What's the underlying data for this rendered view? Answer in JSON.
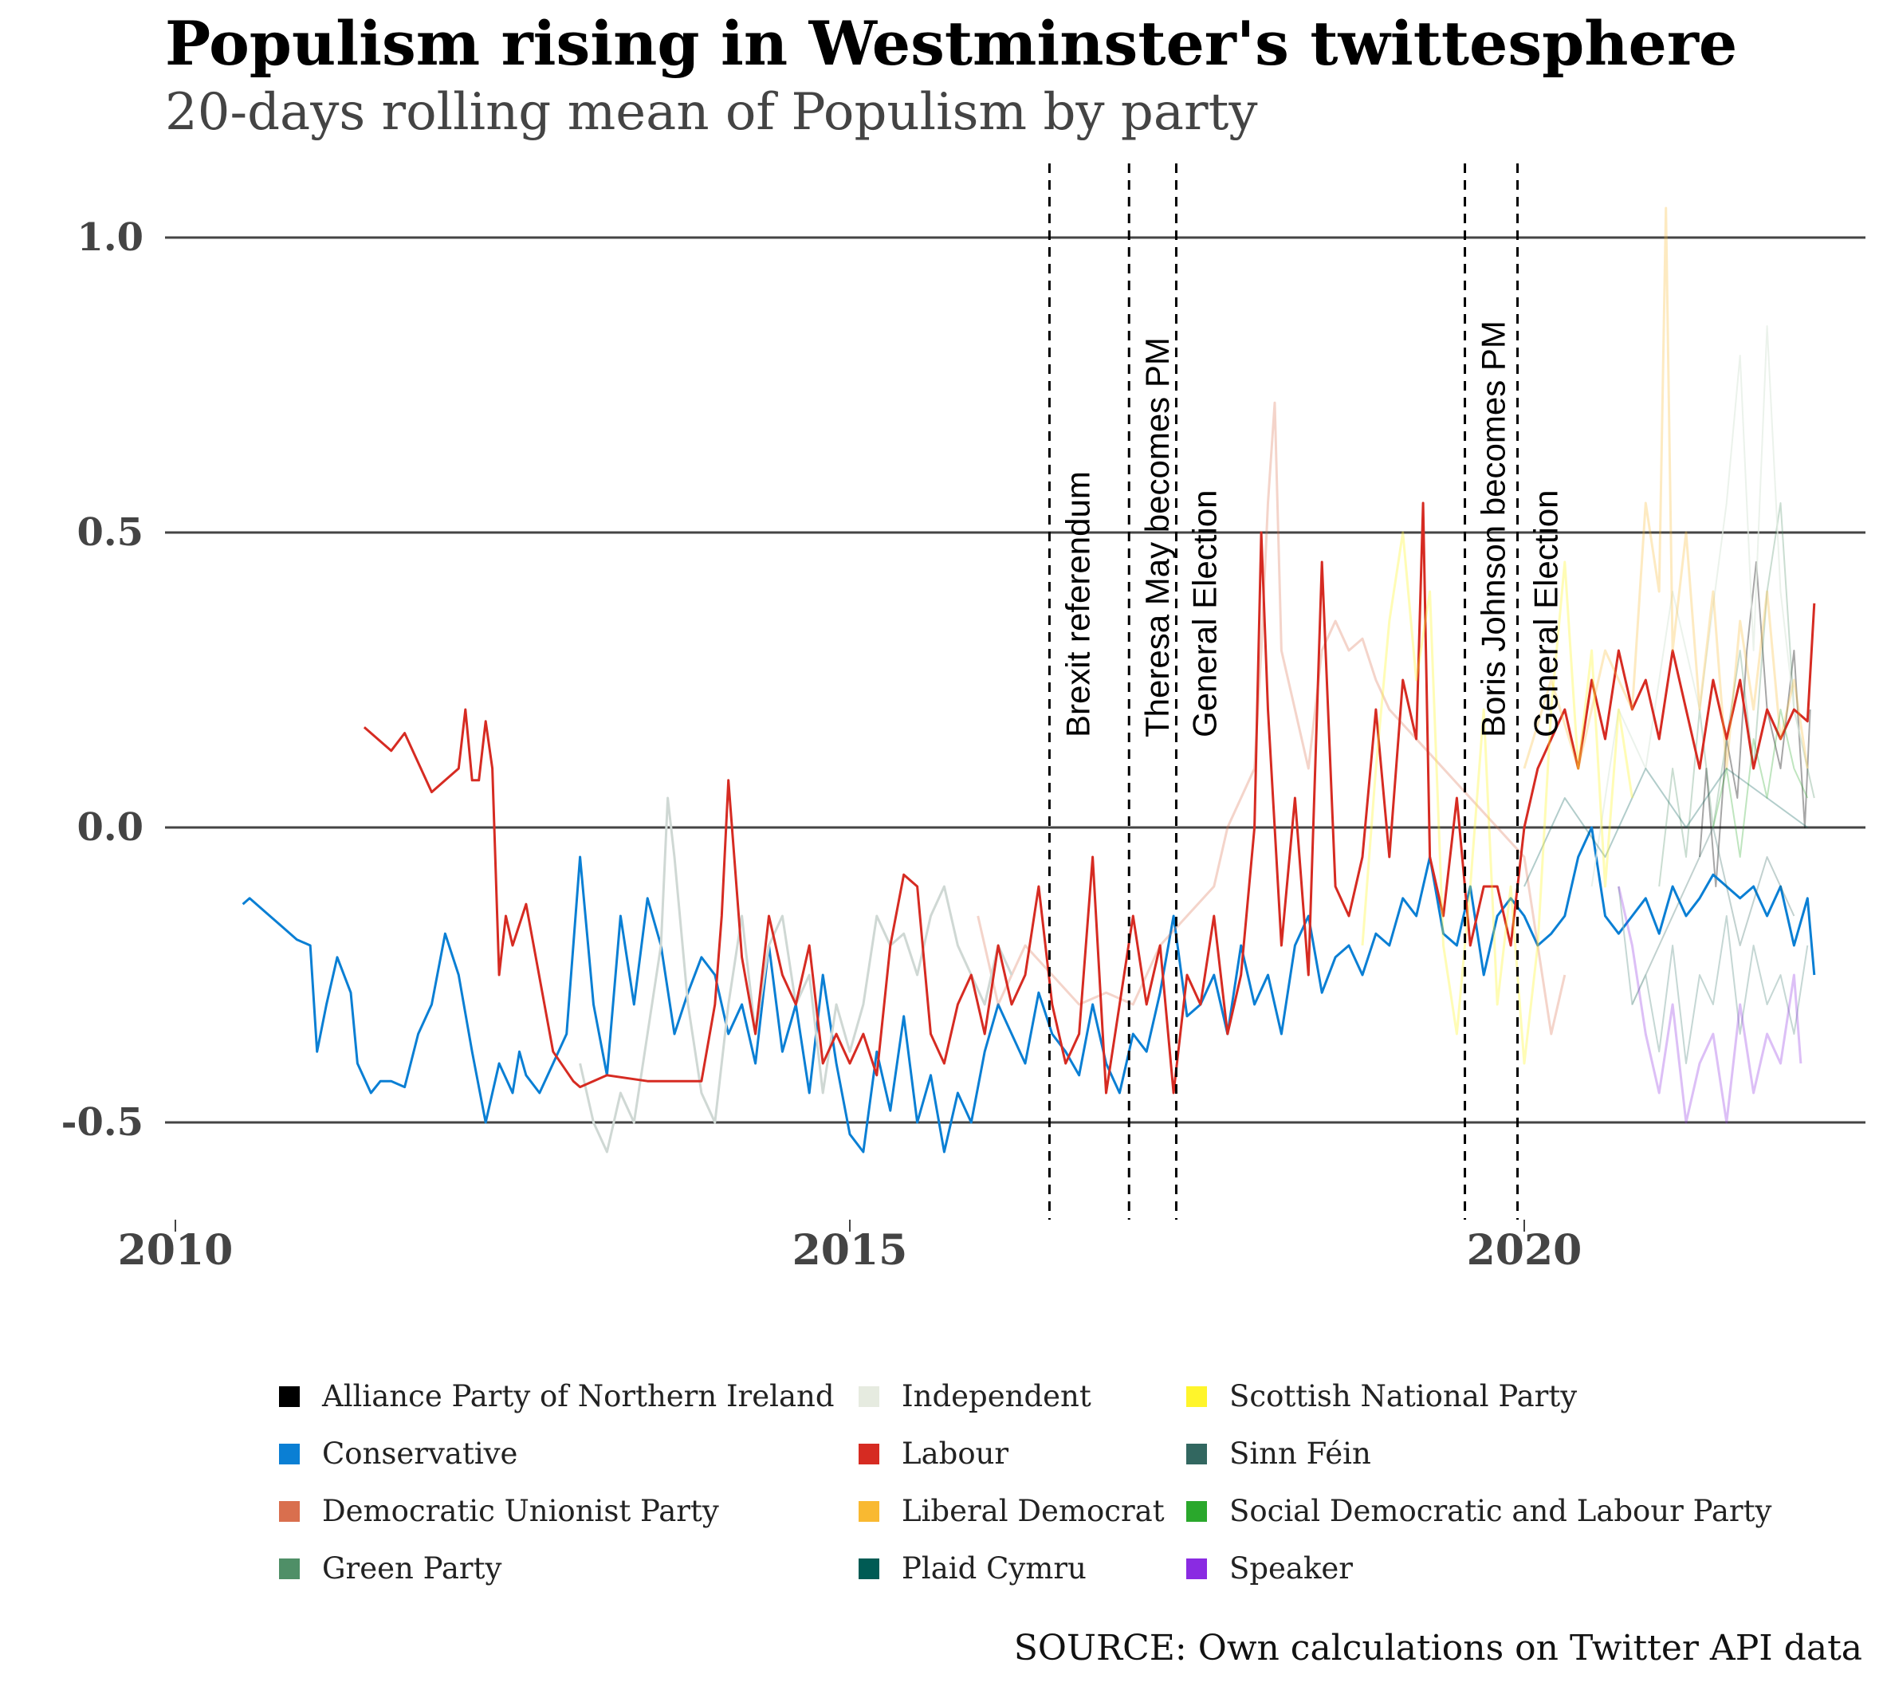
{
  "chart_data": {
    "type": "line",
    "title": "Populism rising in Westminster's twittesphere",
    "subtitle": "20-days rolling mean of Populism by party",
    "source": "SOURCE: Own calculations on Twitter API data",
    "xlabel": "",
    "ylabel": "",
    "xlim": [
      2010.0,
      2022.5
    ],
    "ylim": [
      -0.63,
      1.1
    ],
    "yticks": [
      "1.0",
      "0.5",
      "0.0",
      "-0.5"
    ],
    "ytick_values": [
      1.0,
      0.5,
      0.0,
      -0.5
    ],
    "xticks": [
      "2010",
      "2015",
      "2020"
    ],
    "xtick_values": [
      2010,
      2015,
      2020
    ],
    "grid": "horizontal",
    "legend_position": "bottom",
    "events": [
      {
        "label": "Brexit referendum",
        "x": 2016.48
      },
      {
        "label": "Theresa May becomes PM",
        "x": 2017.07
      },
      {
        "label": "General Election",
        "x": 2017.42
      },
      {
        "label": "Boris Johnson becomes PM",
        "x": 2019.56
      },
      {
        "label": "General Election",
        "x": 2019.95
      }
    ],
    "series": [
      {
        "name": "Alliance Party of Northern Ireland",
        "color": "#000000",
        "opacity": 0.35,
        "width": 2,
        "x": [
          2021.3,
          2021.35,
          2021.42,
          2021.5,
          2021.58,
          2021.65,
          2021.72,
          2021.8,
          2021.9,
          2022.0,
          2022.08,
          2022.12
        ],
        "y": [
          -0.05,
          0.1,
          -0.1,
          0.15,
          0.05,
          0.3,
          0.45,
          0.2,
          0.1,
          0.3,
          0.0,
          0.2
        ]
      },
      {
        "name": "Conservative",
        "color": "#0a7fd4",
        "opacity": 1.0,
        "width": 3,
        "x": [
          2010.5,
          2010.55,
          2010.8,
          2010.9,
          2011.0,
          2011.05,
          2011.12,
          2011.2,
          2011.3,
          2011.35,
          2011.45,
          2011.52,
          2011.6,
          2011.7,
          2011.8,
          2011.9,
          2012.0,
          2012.1,
          2012.2,
          2012.3,
          2012.4,
          2012.5,
          2012.55,
          2012.6,
          2012.7,
          2012.8,
          2012.9,
          2013.0,
          2013.1,
          2013.2,
          2013.3,
          2013.4,
          2013.5,
          2013.6,
          2013.7,
          2013.8,
          2013.9,
          2014.0,
          2014.1,
          2014.2,
          2014.3,
          2014.4,
          2014.5,
          2014.6,
          2014.7,
          2014.8,
          2014.9,
          2015.0,
          2015.1,
          2015.2,
          2015.3,
          2015.4,
          2015.5,
          2015.6,
          2015.7,
          2015.8,
          2015.9,
          2016.0,
          2016.1,
          2016.2,
          2016.3,
          2016.4,
          2016.5,
          2016.6,
          2016.7,
          2016.8,
          2016.9,
          2017.0,
          2017.1,
          2017.2,
          2017.3,
          2017.4,
          2017.5,
          2017.6,
          2017.7,
          2017.8,
          2017.9,
          2018.0,
          2018.1,
          2018.2,
          2018.3,
          2018.4,
          2018.5,
          2018.6,
          2018.7,
          2018.8,
          2018.9,
          2019.0,
          2019.1,
          2019.2,
          2019.3,
          2019.4,
          2019.5,
          2019.6,
          2019.7,
          2019.8,
          2019.9,
          2020.0,
          2020.1,
          2020.2,
          2020.3,
          2020.4,
          2020.5,
          2020.6,
          2020.7,
          2020.8,
          2020.9,
          2021.0,
          2021.1,
          2021.2,
          2021.3,
          2021.4,
          2021.5,
          2021.6,
          2021.7,
          2021.8,
          2021.9,
          2022.0,
          2022.1,
          2022.15
        ],
        "y": [
          -0.13,
          -0.12,
          -0.17,
          -0.19,
          -0.2,
          -0.38,
          -0.3,
          -0.22,
          -0.28,
          -0.4,
          -0.45,
          -0.43,
          -0.43,
          -0.44,
          -0.35,
          -0.3,
          -0.18,
          -0.25,
          -0.38,
          -0.5,
          -0.4,
          -0.45,
          -0.38,
          -0.42,
          -0.45,
          -0.4,
          -0.35,
          -0.05,
          -0.3,
          -0.42,
          -0.15,
          -0.3,
          -0.12,
          -0.2,
          -0.35,
          -0.28,
          -0.22,
          -0.25,
          -0.35,
          -0.3,
          -0.4,
          -0.2,
          -0.38,
          -0.3,
          -0.45,
          -0.25,
          -0.4,
          -0.52,
          -0.55,
          -0.38,
          -0.48,
          -0.32,
          -0.5,
          -0.42,
          -0.55,
          -0.45,
          -0.5,
          -0.38,
          -0.3,
          -0.35,
          -0.4,
          -0.28,
          -0.35,
          -0.38,
          -0.42,
          -0.3,
          -0.4,
          -0.45,
          -0.35,
          -0.38,
          -0.28,
          -0.15,
          -0.32,
          -0.3,
          -0.25,
          -0.35,
          -0.2,
          -0.3,
          -0.25,
          -0.35,
          -0.2,
          -0.15,
          -0.28,
          -0.22,
          -0.2,
          -0.25,
          -0.18,
          -0.2,
          -0.12,
          -0.15,
          -0.05,
          -0.18,
          -0.2,
          -0.1,
          -0.25,
          -0.15,
          -0.12,
          -0.15,
          -0.2,
          -0.18,
          -0.15,
          -0.05,
          0.0,
          -0.15,
          -0.18,
          -0.15,
          -0.12,
          -0.18,
          -0.1,
          -0.15,
          -0.12,
          -0.08,
          -0.1,
          -0.12,
          -0.1,
          -0.15,
          -0.1,
          -0.2,
          -0.12,
          -0.25
        ]
      },
      {
        "name": "Democratic Unionist Party",
        "color": "#d96f4e",
        "opacity": 0.3,
        "width": 3,
        "x": [
          2015.95,
          2016.1,
          2016.3,
          2016.5,
          2016.7,
          2016.9,
          2017.1,
          2017.3,
          2017.5,
          2017.7,
          2017.8,
          2017.9,
          2018.0,
          2018.05,
          2018.1,
          2018.15,
          2018.2,
          2018.3,
          2018.4,
          2018.5,
          2018.6,
          2018.7,
          2018.8,
          2018.9,
          2019.0,
          2019.2,
          2019.4,
          2019.6,
          2019.8,
          2020.0,
          2020.1,
          2020.2,
          2020.3
        ],
        "y": [
          -0.15,
          -0.3,
          -0.2,
          -0.25,
          -0.3,
          -0.28,
          -0.3,
          -0.2,
          -0.15,
          -0.1,
          0.0,
          0.05,
          0.1,
          0.3,
          0.55,
          0.72,
          0.3,
          0.2,
          0.1,
          0.3,
          0.35,
          0.3,
          0.32,
          0.25,
          0.2,
          0.15,
          0.1,
          0.05,
          0.0,
          -0.05,
          -0.2,
          -0.35,
          -0.25
        ]
      },
      {
        "name": "Green Party",
        "color": "#4f8f67",
        "opacity": 0.3,
        "width": 2,
        "x": [
          2021.0,
          2021.1,
          2021.2,
          2021.3,
          2021.4,
          2021.5,
          2021.6,
          2021.7,
          2021.8,
          2021.9,
          2022.0,
          2022.1,
          2022.15
        ],
        "y": [
          -0.1,
          0.1,
          -0.05,
          0.2,
          0.0,
          0.15,
          0.3,
          0.1,
          0.4,
          0.55,
          0.2,
          0.1,
          0.05
        ]
      },
      {
        "name": "Independent",
        "color": "#cfd8d4",
        "opacity": 1.0,
        "width": 3,
        "x": [
          2013.0,
          2013.1,
          2013.2,
          2013.3,
          2013.4,
          2013.5,
          2013.6,
          2013.65,
          2013.7,
          2013.8,
          2013.9,
          2014.0,
          2014.1,
          2014.2,
          2014.3,
          2014.4,
          2014.5,
          2014.6,
          2014.7,
          2014.8,
          2014.9,
          2015.0,
          2015.1,
          2015.2,
          2015.3,
          2015.4,
          2015.5,
          2015.6,
          2015.7,
          2015.8,
          2015.9,
          2016.0,
          2016.1,
          2016.2
        ],
        "y": [
          -0.4,
          -0.5,
          -0.55,
          -0.45,
          -0.5,
          -0.35,
          -0.2,
          0.05,
          -0.05,
          -0.3,
          -0.45,
          -0.5,
          -0.3,
          -0.15,
          -0.35,
          -0.2,
          -0.15,
          -0.3,
          -0.25,
          -0.45,
          -0.3,
          -0.38,
          -0.3,
          -0.15,
          -0.2,
          -0.18,
          -0.25,
          -0.15,
          -0.1,
          -0.2,
          -0.25,
          -0.3,
          -0.2,
          -0.25
        ]
      },
      {
        "name": "Independent",
        "color": "#e3ece3",
        "opacity": 0.7,
        "width": 2,
        "x": [
          2020.5,
          2020.7,
          2020.9,
          2021.1,
          2021.3,
          2021.5,
          2021.6,
          2021.7,
          2021.8,
          2021.9,
          2022.0,
          2022.1
        ],
        "y": [
          -0.1,
          0.2,
          0.1,
          0.4,
          0.2,
          0.55,
          0.8,
          0.3,
          0.85,
          0.4,
          0.2,
          0.1
        ]
      },
      {
        "name": "Labour",
        "color": "#d62b22",
        "opacity": 1.0,
        "width": 3,
        "x": [
          2011.4,
          2011.6,
          2011.7,
          2011.9,
          2012.0,
          2012.1,
          2012.15,
          2012.2,
          2012.25,
          2012.3,
          2012.35,
          2012.4,
          2012.45,
          2012.5,
          2012.6,
          2012.8,
          2012.95,
          2013.0,
          2013.2,
          2013.5,
          2013.9,
          2014.0,
          2014.05,
          2014.1,
          2014.2,
          2014.3,
          2014.4,
          2014.5,
          2014.6,
          2014.7,
          2014.8,
          2014.9,
          2015.0,
          2015.1,
          2015.2,
          2015.3,
          2015.4,
          2015.5,
          2015.6,
          2015.7,
          2015.8,
          2015.9,
          2016.0,
          2016.1,
          2016.2,
          2016.3,
          2016.4,
          2016.5,
          2016.6,
          2016.7,
          2016.8,
          2016.9,
          2017.0,
          2017.1,
          2017.2,
          2017.3,
          2017.4,
          2017.5,
          2017.6,
          2017.7,
          2017.8,
          2017.9,
          2018.0,
          2018.05,
          2018.1,
          2018.2,
          2018.3,
          2018.4,
          2018.5,
          2018.6,
          2018.7,
          2018.8,
          2018.9,
          2019.0,
          2019.1,
          2019.2,
          2019.25,
          2019.3,
          2019.4,
          2019.5,
          2019.6,
          2019.7,
          2019.8,
          2019.9,
          2020.0,
          2020.1,
          2020.2,
          2020.3,
          2020.4,
          2020.5,
          2020.6,
          2020.7,
          2020.8,
          2020.9,
          2021.0,
          2021.1,
          2021.2,
          2021.3,
          2021.4,
          2021.5,
          2021.6,
          2021.7,
          2021.8,
          2021.9,
          2022.0,
          2022.1,
          2022.15
        ],
        "y": [
          0.17,
          0.13,
          0.16,
          0.06,
          0.08,
          0.1,
          0.2,
          0.08,
          0.08,
          0.18,
          0.1,
          -0.25,
          -0.15,
          -0.2,
          -0.13,
          -0.38,
          -0.43,
          -0.44,
          -0.42,
          -0.43,
          -0.43,
          -0.3,
          -0.15,
          0.08,
          -0.22,
          -0.35,
          -0.15,
          -0.25,
          -0.3,
          -0.2,
          -0.4,
          -0.35,
          -0.4,
          -0.35,
          -0.42,
          -0.2,
          -0.08,
          -0.1,
          -0.35,
          -0.4,
          -0.3,
          -0.25,
          -0.35,
          -0.2,
          -0.3,
          -0.25,
          -0.1,
          -0.3,
          -0.4,
          -0.35,
          -0.05,
          -0.45,
          -0.3,
          -0.15,
          -0.3,
          -0.2,
          -0.45,
          -0.25,
          -0.3,
          -0.15,
          -0.35,
          -0.25,
          0.0,
          0.5,
          0.2,
          -0.2,
          0.05,
          -0.25,
          0.45,
          -0.1,
          -0.15,
          -0.05,
          0.2,
          -0.05,
          0.25,
          0.15,
          0.55,
          -0.05,
          -0.15,
          0.05,
          -0.2,
          -0.1,
          -0.1,
          -0.2,
          0.0,
          0.1,
          0.15,
          0.2,
          0.1,
          0.25,
          0.15,
          0.3,
          0.2,
          0.25,
          0.15,
          0.3,
          0.2,
          0.1,
          0.25,
          0.15,
          0.25,
          0.1,
          0.2,
          0.15,
          0.2,
          0.18,
          0.38
        ]
      },
      {
        "name": "Liberal Democrat",
        "color": "#f9b931",
        "opacity": 0.3,
        "width": 3,
        "x": [
          2020.0,
          2020.2,
          2020.4,
          2020.6,
          2020.8,
          2020.9,
          2021.0,
          2021.05,
          2021.1,
          2021.2,
          2021.3,
          2021.4,
          2021.5,
          2021.6,
          2021.7,
          2021.8,
          2021.9,
          2022.0,
          2022.1
        ],
        "y": [
          0.1,
          0.25,
          0.1,
          0.3,
          0.2,
          0.55,
          0.4,
          1.05,
          0.3,
          0.5,
          0.2,
          0.4,
          0.1,
          0.35,
          0.2,
          0.4,
          0.15,
          0.25,
          0.1
        ]
      },
      {
        "name": "Plaid Cymru",
        "color": "#005b54",
        "opacity": 0.3,
        "width": 2,
        "x": [
          2020.0,
          2020.3,
          2020.6,
          2020.9,
          2021.2,
          2021.5,
          2021.8,
          2022.1
        ],
        "y": [
          -0.1,
          0.05,
          -0.05,
          0.1,
          0.0,
          0.1,
          0.05,
          0.0
        ]
      },
      {
        "name": "Scottish National Party",
        "color": "#fff52b",
        "opacity": 0.35,
        "width": 3,
        "x": [
          2018.8,
          2018.9,
          2019.0,
          2019.1,
          2019.2,
          2019.3,
          2019.4,
          2019.5,
          2019.6,
          2019.7,
          2019.8,
          2019.9,
          2020.0,
          2020.1,
          2020.2,
          2020.3,
          2020.4,
          2020.5,
          2020.6,
          2020.7,
          2020.8
        ],
        "y": [
          -0.2,
          0.1,
          0.35,
          0.5,
          0.25,
          0.4,
          -0.2,
          -0.35,
          -0.1,
          0.2,
          -0.3,
          -0.1,
          -0.4,
          -0.2,
          0.2,
          0.45,
          0.1,
          0.3,
          -0.1,
          0.2,
          0.05
        ]
      },
      {
        "name": "Sinn Féin",
        "color": "#326760",
        "opacity": 0.3,
        "width": 2,
        "x": [
          2020.8,
          2021.0,
          2021.2,
          2021.4,
          2021.6,
          2021.8,
          2022.0
        ],
        "y": [
          -0.3,
          -0.2,
          -0.1,
          0.0,
          -0.2,
          -0.05,
          -0.15
        ]
      },
      {
        "name": "Social Democratic and Labour Party",
        "color": "#2aa82c",
        "opacity": 0.3,
        "width": 2,
        "x": [
          2021.4,
          2021.5,
          2021.6,
          2021.7,
          2021.8,
          2021.9,
          2022.0,
          2022.1
        ],
        "y": [
          0.0,
          0.1,
          -0.05,
          0.15,
          0.05,
          0.2,
          0.1,
          0.05
        ]
      },
      {
        "name": "Sinn Féin",
        "color": "#9fbcb8",
        "opacity": 0.6,
        "width": 2,
        "x": [
          2020.7,
          2020.8,
          2020.9,
          2021.0,
          2021.1,
          2021.2,
          2021.3,
          2021.4,
          2021.5,
          2021.6,
          2021.7,
          2021.8,
          2021.9,
          2022.0,
          2022.1
        ],
        "y": [
          -0.1,
          -0.3,
          -0.25,
          -0.38,
          -0.2,
          -0.4,
          -0.25,
          -0.3,
          -0.15,
          -0.35,
          -0.2,
          -0.3,
          -0.25,
          -0.35,
          -0.2
        ]
      },
      {
        "name": "Speaker",
        "color": "#8a2be2",
        "opacity": 0.3,
        "width": 3,
        "x": [
          2020.7,
          2020.8,
          2020.9,
          2021.0,
          2021.1,
          2021.2,
          2021.3,
          2021.4,
          2021.5,
          2021.6,
          2021.7,
          2021.8,
          2021.9,
          2022.0,
          2022.05
        ],
        "y": [
          -0.1,
          -0.2,
          -0.35,
          -0.45,
          -0.3,
          -0.5,
          -0.4,
          -0.35,
          -0.5,
          -0.3,
          -0.45,
          -0.35,
          -0.4,
          -0.25,
          -0.4
        ]
      }
    ]
  },
  "legend": [
    {
      "label": "Alliance Party of Northern Ireland",
      "color": "#000000"
    },
    {
      "label": "Conservative",
      "color": "#0a7fd4"
    },
    {
      "label": "Democratic Unionist Party",
      "color": "#d96f4e"
    },
    {
      "label": "Green Party",
      "color": "#4f8f67"
    },
    {
      "label": "Independent",
      "color": "#e6ebe0"
    },
    {
      "label": "Labour",
      "color": "#d62b22"
    },
    {
      "label": "Liberal Democrat",
      "color": "#f9b931"
    },
    {
      "label": "Plaid Cymru",
      "color": "#005b54"
    },
    {
      "label": "Scottish National Party",
      "color": "#fff52b"
    },
    {
      "label": "Sinn Féin",
      "color": "#326760"
    },
    {
      "label": "Social Democratic and Labour Party",
      "color": "#2aa82c"
    },
    {
      "label": "Speaker",
      "color": "#8a2be2"
    }
  ]
}
